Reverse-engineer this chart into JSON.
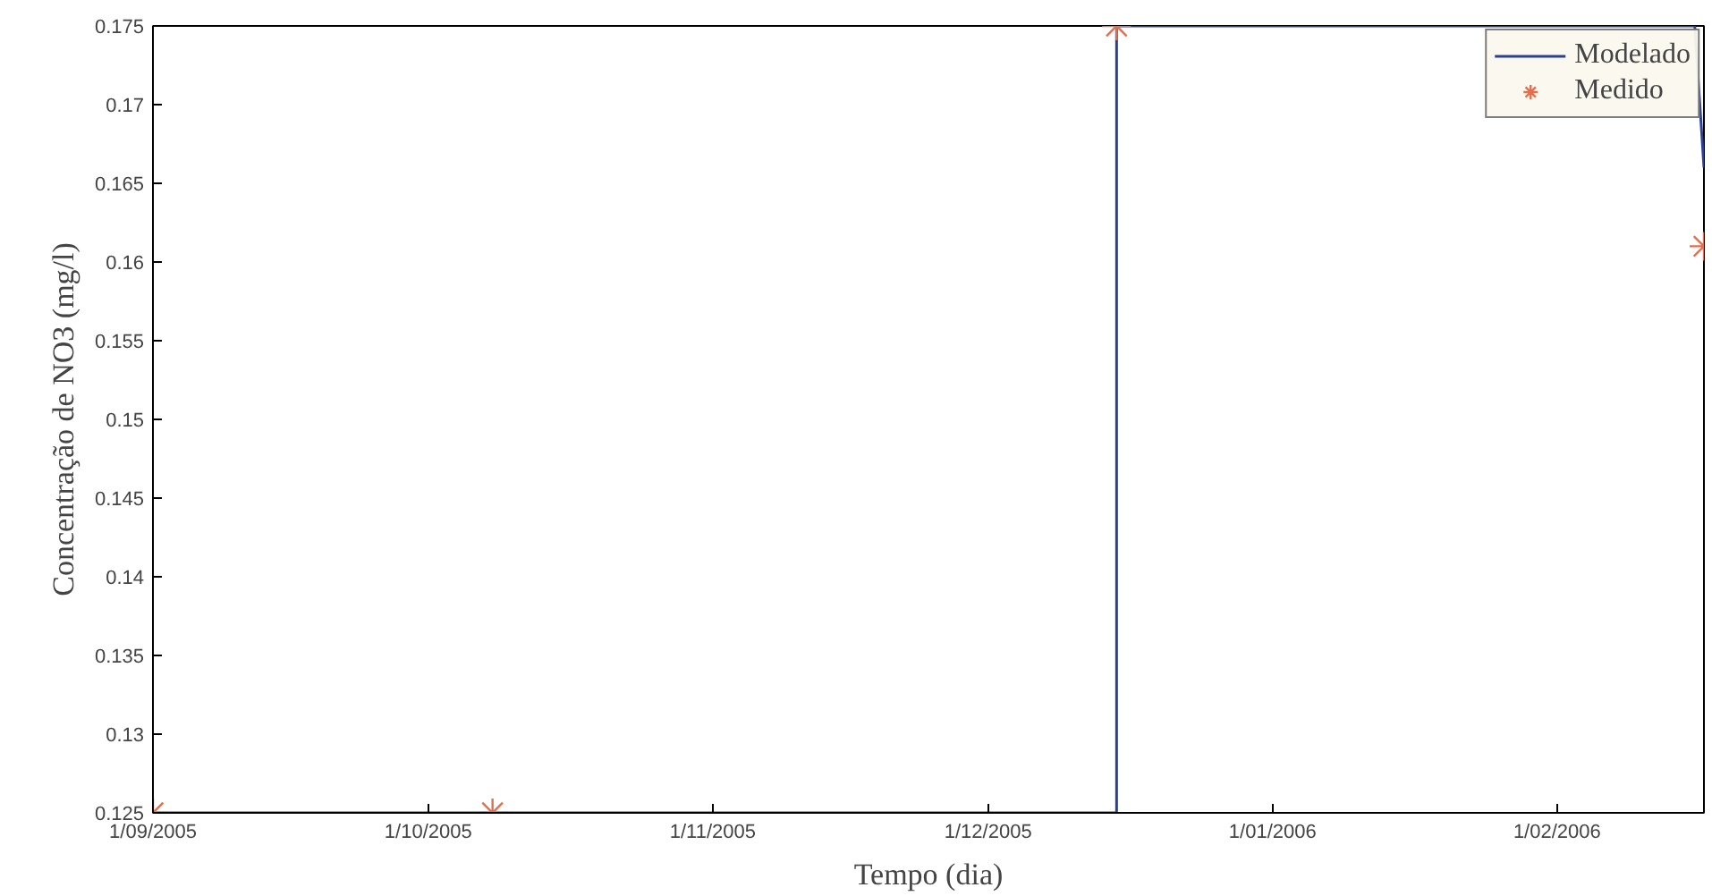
{
  "chart_data": {
    "type": "line",
    "xlabel": "Tempo (dia)",
    "ylabel": "Concentração de NO3 (mg/l)",
    "series": [
      {
        "name": "Modelado",
        "color": "#2a3f9a",
        "line_style": "solid",
        "x": [
          "2005-09-01",
          "2005-12-15",
          "2005-12-15",
          "2006-02-16",
          "2006-02-17"
        ],
        "values": [
          0.125,
          0.125,
          0.175,
          0.175,
          0.166
        ]
      },
      {
        "name": "Medido",
        "type": "scatter",
        "color": "#e07050",
        "marker": "cross",
        "x": [
          "2005-09-01",
          "2005-10-08",
          "2005-12-15",
          "2006-02-17"
        ],
        "values": [
          0.125,
          0.125,
          0.175,
          0.161
        ]
      }
    ],
    "xlim": [
      "2005-09-01",
      "2006-02-17"
    ],
    "xticks": [
      {
        "value": "2005-09-01",
        "label": "1/09/2005"
      },
      {
        "value": "2005-10-01",
        "label": "1/10/2005"
      },
      {
        "value": "2005-11-01",
        "label": "1/11/2005"
      },
      {
        "value": "2005-12-01",
        "label": "1/12/2005"
      },
      {
        "value": "2006-01-01",
        "label": "1/01/2006"
      },
      {
        "value": "2006-02-01",
        "label": "1/02/2006"
      }
    ],
    "ylim": [
      0.125,
      0.175
    ],
    "yticks": [
      0.125,
      0.13,
      0.135,
      0.14,
      0.145,
      0.15,
      0.155,
      0.16,
      0.165,
      0.17,
      0.175
    ],
    "grid": false,
    "legend": "top right"
  }
}
